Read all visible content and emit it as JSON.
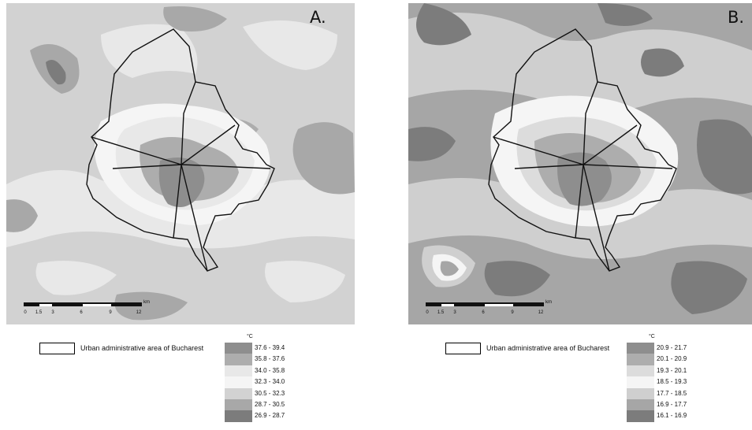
{
  "panels": [
    {
      "letter": "A.",
      "legend_unit": "°C",
      "outline_label": "Urban administrative area of Bucharest",
      "classes": [
        {
          "label": "37.6 - 39.4",
          "color": "#8e8e8e"
        },
        {
          "label": "35.8 - 37.6",
          "color": "#adadad"
        },
        {
          "label": "34.0 - 35.8",
          "color": "#e8e8e8"
        },
        {
          "label": "32.3 - 34.0",
          "color": "#f5f5f5"
        },
        {
          "label": "30.5 - 32.3",
          "color": "#d2d2d2"
        },
        {
          "label": "28.7 - 30.5",
          "color": "#a8a8a8"
        },
        {
          "label": "26.9 - 28.7",
          "color": "#7c7c7c"
        }
      ],
      "scale": {
        "unit": "km",
        "ticks": [
          "0",
          "1.5",
          "3",
          "6",
          "9",
          "12"
        ]
      }
    },
    {
      "letter": "B.",
      "legend_unit": "°C",
      "outline_label": "Urban administrative area of Bucharest",
      "classes": [
        {
          "label": "20.9 - 21.7",
          "color": "#8e8e8e"
        },
        {
          "label": "20.1 - 20.9",
          "color": "#adadad"
        },
        {
          "label": "19.3 - 20.1",
          "color": "#dcdcdc"
        },
        {
          "label": "18.5 - 19.3",
          "color": "#f5f5f5"
        },
        {
          "label": "17.7 - 18.5",
          "color": "#cfcfcf"
        },
        {
          "label": "16.9 - 17.7",
          "color": "#a6a6a6"
        },
        {
          "label": "16.1 - 16.9",
          "color": "#7c7c7c"
        }
      ],
      "scale": {
        "unit": "km",
        "ticks": [
          "0",
          "1.5",
          "3",
          "6",
          "9",
          "12"
        ]
      }
    }
  ]
}
